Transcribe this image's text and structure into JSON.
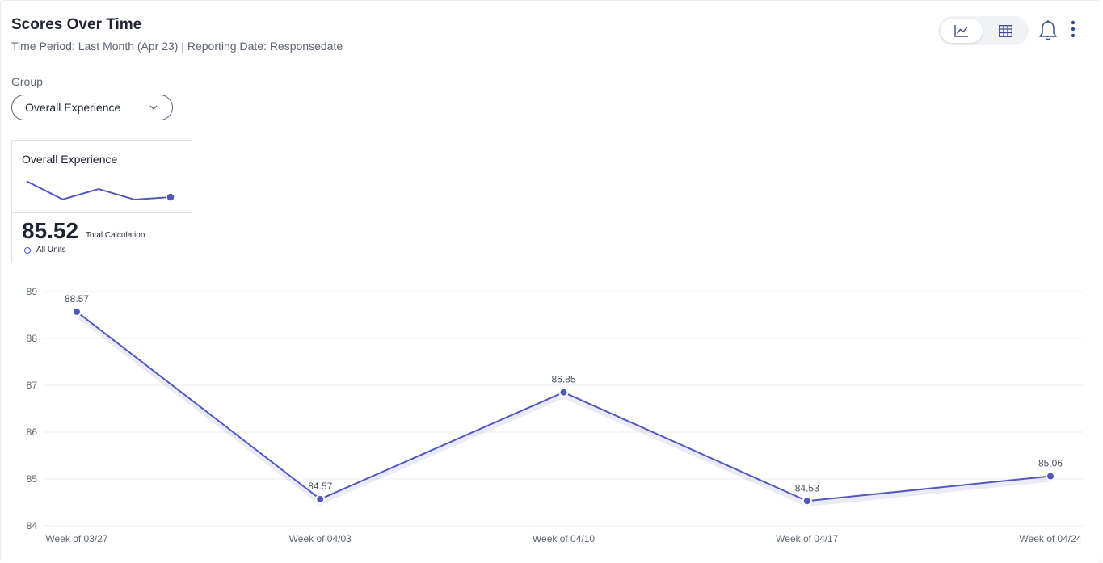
{
  "header": {
    "title": "Scores Over Time",
    "subtitle": "Time Period: Last Month (Apr 23) | Reporting Date: Responsedate"
  },
  "toolbar": {
    "chart_view_icon": "line-chart-icon",
    "table_view_icon": "table-grid-icon",
    "alert_icon": "bell-icon",
    "more_icon": "more-vertical-icon",
    "active_view": "chart"
  },
  "filter": {
    "label": "Group",
    "selected": "Overall Experience"
  },
  "summary_card": {
    "title": "Overall Experience",
    "value": "85.52",
    "calc_label": "Total Calculation",
    "unit_label": "All Units"
  },
  "colors": {
    "accent": "#5058c0",
    "grid": "#ececf0",
    "text": "#1f2433",
    "muted": "#5f6473"
  },
  "chart_data": {
    "type": "line",
    "categories": [
      "Week of 03/27",
      "Week of 04/03",
      "Week of 04/10",
      "Week of 04/17",
      "Week of 04/24"
    ],
    "values": [
      88.57,
      84.57,
      86.85,
      84.53,
      85.06
    ],
    "data_labels": [
      "88.57",
      "84.57",
      "86.85",
      "84.53",
      "85.06"
    ],
    "y_ticks": [
      "84",
      "85",
      "86",
      "87",
      "88",
      "89"
    ],
    "ylim": [
      84,
      89
    ],
    "grid": true,
    "legend": "none"
  }
}
